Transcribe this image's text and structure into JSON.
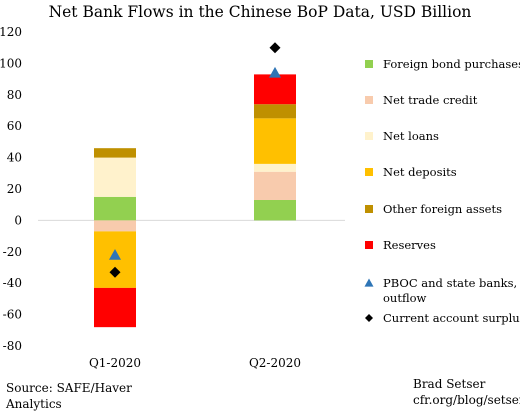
{
  "chart_data": {
    "type": "bar",
    "stacked": true,
    "title": "Net Bank Flows in the Chinese BoP Data, USD Billion",
    "categories": [
      "Q1-2020",
      "Q2-2020"
    ],
    "ylim": [
      -80,
      120
    ],
    "yticks": [
      -80,
      -60,
      -40,
      -20,
      0,
      20,
      40,
      60,
      80,
      100,
      120
    ],
    "grid": false,
    "legend_position": "right",
    "series": [
      {
        "name": "Foreign bond purchases",
        "color": "#92d050",
        "values": [
          15,
          13
        ]
      },
      {
        "name": "Net trade credit",
        "color": "#f8cbad",
        "values": [
          -7,
          18
        ]
      },
      {
        "name": "Net loans",
        "color": "#fff2cc",
        "values": [
          25,
          5
        ]
      },
      {
        "name": "Net deposits",
        "color": "#ffc000",
        "values": [
          -36,
          29
        ]
      },
      {
        "name": "Other foreign assets",
        "color": "#bf9000",
        "values": [
          6,
          9
        ]
      },
      {
        "name": "Reserves",
        "color": "#ff0000",
        "values": [
          -25,
          19
        ]
      }
    ],
    "markers": [
      {
        "name": "PBOC and state banks, net outflow",
        "shape": "triangle",
        "color": "#2e75b6",
        "values": [
          -22,
          94
        ]
      },
      {
        "name": "Current account surplus",
        "shape": "diamond",
        "color": "#000000",
        "values": [
          -33,
          110
        ]
      }
    ],
    "legend": [
      {
        "label": "Foreign bond purchases",
        "kind": "square",
        "color": "#92d050"
      },
      {
        "label": "Net trade credit",
        "kind": "square",
        "color": "#f8cbad"
      },
      {
        "label": "Net loans",
        "kind": "square",
        "color": "#fff2cc"
      },
      {
        "label": "Net deposits",
        "kind": "square",
        "color": "#ffc000"
      },
      {
        "label": "Other foreign assets",
        "kind": "square",
        "color": "#bf9000"
      },
      {
        "label": "Reserves",
        "kind": "square",
        "color": "#ff0000"
      },
      {
        "label": "PBOC and state banks, net",
        "label2": "outflow",
        "kind": "triangle",
        "color": "#2e75b6"
      },
      {
        "label": "Current account surplus",
        "kind": "diamond",
        "color": "#000000"
      }
    ]
  },
  "source": {
    "line1": "Source: SAFE/Haver",
    "line2": "Analytics"
  },
  "credit": {
    "line1": "Brad Setser",
    "line2": "cfr.org/blog/setser"
  }
}
